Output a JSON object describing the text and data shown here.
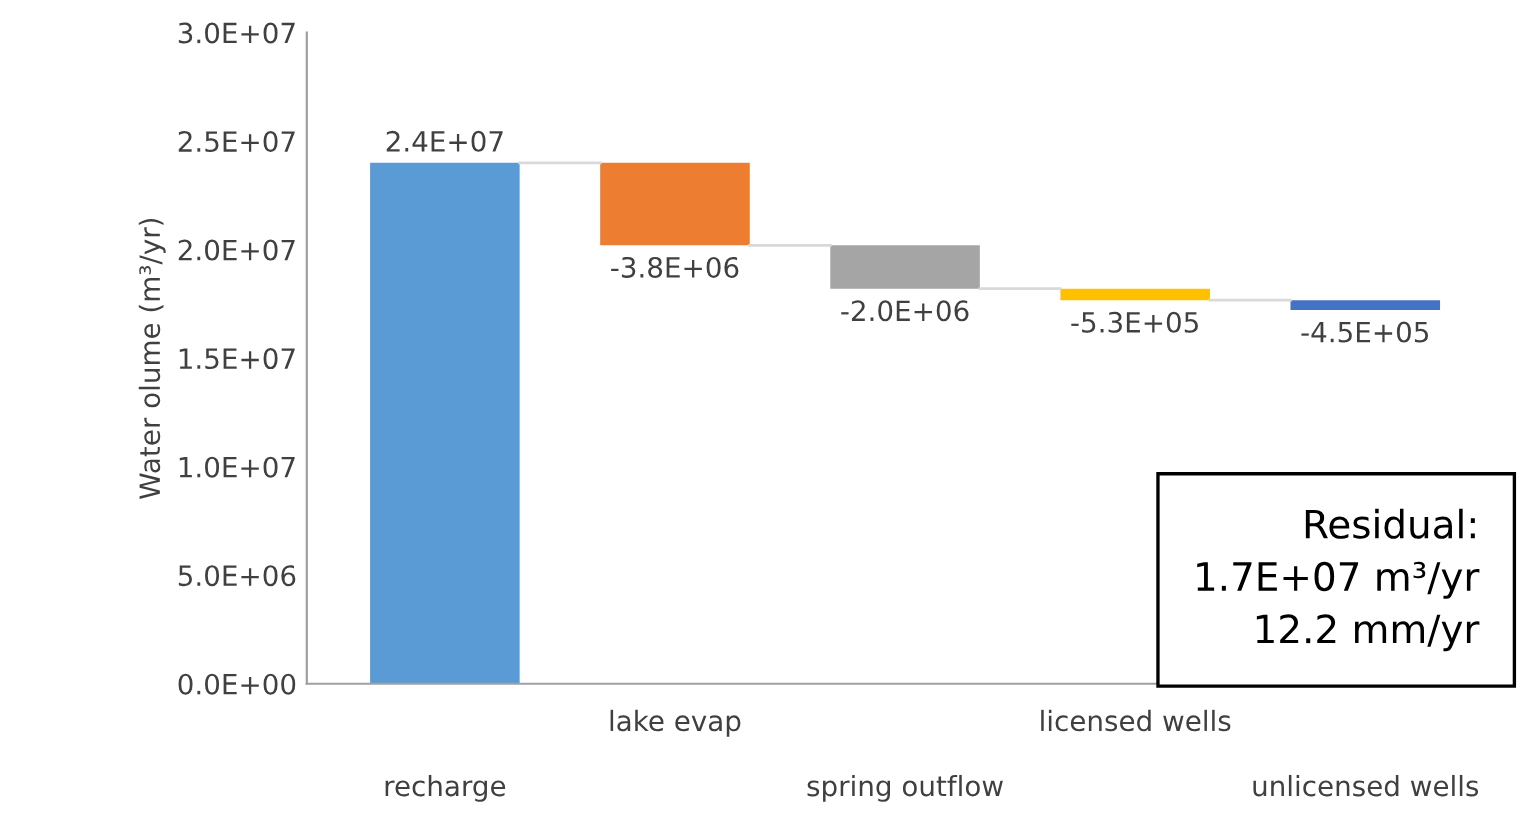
{
  "chart_data": {
    "type": "bar",
    "ylabel": "Water olume (m³/yr)",
    "categories": [
      "recharge",
      "lake evap",
      "spring outflow",
      "licensed wells",
      "unlicensed wells"
    ],
    "values": [
      24000000,
      -3800000,
      -2000000,
      -530000,
      -450000
    ],
    "base": [
      0,
      24000000,
      20200000,
      18200000,
      17670000
    ],
    "colors": [
      "#5b9bd5",
      "#ed7d31",
      "#a5a5a5",
      "#ffc000",
      "#4472c4"
    ],
    "value_labels": [
      "2.4E+07",
      "-3.8E+06",
      "-2.0E+06",
      "-5.3E+05",
      "-4.5E+05"
    ],
    "ylim": [
      0,
      30000000
    ],
    "yticks": [
      {
        "value": 0,
        "label": "0.0E+00"
      },
      {
        "value": 5000000,
        "label": "5.0E+06"
      },
      {
        "value": 10000000,
        "label": "1.0E+07"
      },
      {
        "value": 15000000,
        "label": "1.5E+07"
      },
      {
        "value": 20000000,
        "label": "2.0E+07"
      },
      {
        "value": 25000000,
        "label": "2.5E+07"
      },
      {
        "value": 30000000,
        "label": "3.0E+07"
      }
    ],
    "annotations": [
      "Residual:\n1.7E+07 m³/yr\n12.2 mm/yr"
    ],
    "grid": false,
    "legend": false
  }
}
